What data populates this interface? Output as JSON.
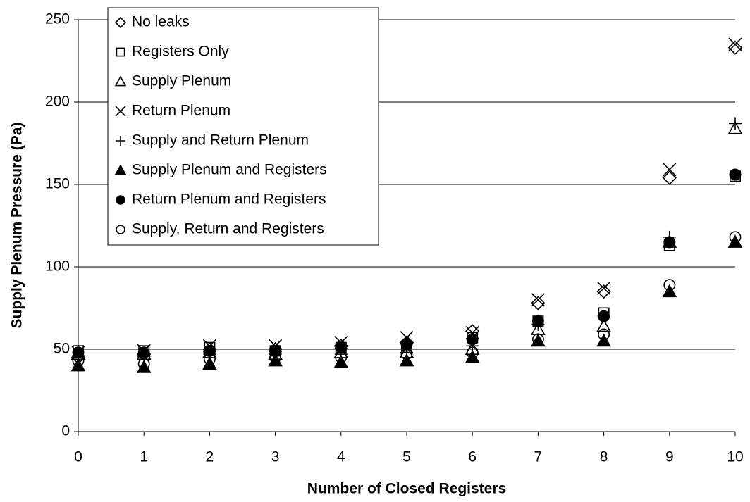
{
  "chart_data": {
    "type": "scatter",
    "x_label": "Number of Closed Registers",
    "y_label": "Supply Plenum Pressure (Pa)",
    "x": [
      0,
      1,
      2,
      3,
      4,
      5,
      6,
      7,
      8,
      9,
      10
    ],
    "xlim": [
      0,
      10
    ],
    "xticks": [
      0,
      1,
      2,
      3,
      4,
      5,
      6,
      7,
      8,
      9,
      10
    ],
    "ylim": [
      0,
      250
    ],
    "yticks": [
      0,
      50,
      100,
      150,
      200,
      250
    ],
    "grid": true,
    "legend": "upper left",
    "series": [
      {
        "name": "No leaks",
        "color": "#000000",
        "marker": "diamond",
        "values": [
          45,
          47,
          50,
          50,
          52,
          54,
          61,
          78,
          85,
          154,
          233
        ]
      },
      {
        "name": "Registers Only",
        "color": "#000000",
        "marker": "square",
        "values": [
          49,
          49,
          51,
          49,
          51,
          52,
          57,
          67,
          72,
          113,
          155
        ]
      },
      {
        "name": "Supply Plenum",
        "color": "#000000",
        "marker": "triangle",
        "values": [
          47,
          47,
          48,
          47,
          48,
          48,
          50,
          62,
          64,
          115,
          184
        ]
      },
      {
        "name": "Return Plenum",
        "color": "#000000",
        "marker": "x",
        "values": [
          48,
          49,
          52,
          52,
          54,
          57,
          60,
          80,
          87,
          159,
          235
        ]
      },
      {
        "name": "Supply and Return Plenum",
        "color": "#000000",
        "marker": "plus",
        "values": [
          46,
          46,
          47,
          47,
          47,
          48,
          52,
          65,
          70,
          118,
          187
        ]
      },
      {
        "name": "Supply Plenum and Registers",
        "color": "#000000",
        "marker": "triangle-filled",
        "values": [
          40,
          39,
          41,
          43,
          42,
          43,
          45,
          55,
          55,
          85,
          115
        ]
      },
      {
        "name": "Return Plenum and Registers",
        "color": "#000000",
        "marker": "circle-filled",
        "values": [
          48,
          48,
          49,
          49,
          51,
          53,
          56,
          67,
          70,
          115,
          156
        ]
      },
      {
        "name": "Supply, Return and Registers",
        "color": "#000000",
        "marker": "circle",
        "values": [
          43,
          41,
          44,
          45,
          45,
          47,
          48,
          56,
          59,
          89,
          118
        ]
      }
    ]
  }
}
